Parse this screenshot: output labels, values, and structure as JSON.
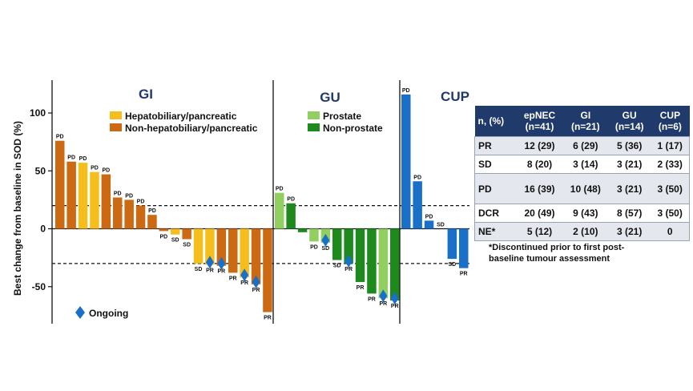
{
  "chart_data": {
    "type": "bar",
    "ylabel": "Best change from baseline in SOD (%)",
    "ylim": [
      -80,
      120
    ],
    "yticks": [
      100,
      50,
      0,
      -50
    ],
    "reference_lines": [
      20,
      -30
    ],
    "groups": [
      {
        "name": "GI",
        "bars": [
          {
            "value": 76,
            "response": "PD",
            "subtype": "Non-hepatobiliary/pancreatic",
            "ongoing": false
          },
          {
            "value": 58,
            "response": "PD",
            "subtype": "Non-hepatobiliary/pancreatic",
            "ongoing": false
          },
          {
            "value": 57,
            "response": "PD",
            "subtype": "Hepatobiliary/pancreatic",
            "ongoing": false
          },
          {
            "value": 49,
            "response": "PD",
            "subtype": "Hepatobiliary/pancreatic",
            "ongoing": false
          },
          {
            "value": 47,
            "response": "PD",
            "subtype": "Non-hepatobiliary/pancreatic",
            "ongoing": false
          },
          {
            "value": 27,
            "response": "PD",
            "subtype": "Non-hepatobiliary/pancreatic",
            "ongoing": false
          },
          {
            "value": 25,
            "response": "PD",
            "subtype": "Non-hepatobiliary/pancreatic",
            "ongoing": false
          },
          {
            "value": 20,
            "response": "PD",
            "subtype": "Non-hepatobiliary/pancreatic",
            "ongoing": false
          },
          {
            "value": 12,
            "response": "PD",
            "subtype": "Non-hepatobiliary/pancreatic",
            "ongoing": false
          },
          {
            "value": -2,
            "response": "PD",
            "subtype": "Non-hepatobiliary/pancreatic",
            "ongoing": false
          },
          {
            "value": -5,
            "response": "SD",
            "subtype": "Hepatobiliary/pancreatic",
            "ongoing": false
          },
          {
            "value": -9,
            "response": "SD",
            "subtype": "Non-hepatobiliary/pancreatic",
            "ongoing": false
          },
          {
            "value": -30,
            "response": "SD",
            "subtype": "Hepatobiliary/pancreatic",
            "ongoing": false
          },
          {
            "value": -31,
            "response": "PR",
            "subtype": "Hepatobiliary/pancreatic",
            "ongoing": true
          },
          {
            "value": -32,
            "response": "PR",
            "subtype": "Non-hepatobiliary/pancreatic",
            "ongoing": true
          },
          {
            "value": -38,
            "response": "PR",
            "subtype": "Non-hepatobiliary/pancreatic",
            "ongoing": false
          },
          {
            "value": -42,
            "response": "PR",
            "subtype": "Hepatobiliary/pancreatic",
            "ongoing": true
          },
          {
            "value": -48,
            "response": "PR",
            "subtype": "Non-hepatobiliary/pancreatic",
            "ongoing": true
          },
          {
            "value": -72,
            "response": "PR",
            "subtype": "Non-hepatobiliary/pancreatic",
            "ongoing": false
          }
        ]
      },
      {
        "name": "GU",
        "bars": [
          {
            "value": 31,
            "response": "PD",
            "subtype": "Prostate",
            "ongoing": false
          },
          {
            "value": 22,
            "response": "PD",
            "subtype": "Non-prostate",
            "ongoing": false
          },
          {
            "value": -3,
            "response": "",
            "subtype": "Non-prostate",
            "ongoing": false
          },
          {
            "value": -11,
            "response": "PD",
            "subtype": "Prostate",
            "ongoing": false
          },
          {
            "value": -12,
            "response": "SD",
            "subtype": "Prostate",
            "ongoing": true
          },
          {
            "value": -27,
            "response": "SD",
            "subtype": "Non-prostate",
            "ongoing": false
          },
          {
            "value": -30,
            "response": "PR",
            "subtype": "Non-prostate",
            "ongoing": true
          },
          {
            "value": -46,
            "response": "PR",
            "subtype": "Non-prostate",
            "ongoing": false
          },
          {
            "value": -56,
            "response": "PR",
            "subtype": "Non-prostate",
            "ongoing": false
          },
          {
            "value": -60,
            "response": "PR",
            "subtype": "Prostate",
            "ongoing": true
          },
          {
            "value": -62,
            "response": "PR",
            "subtype": "Non-prostate",
            "ongoing": true
          }
        ]
      },
      {
        "name": "CUP",
        "bars": [
          {
            "value": 116,
            "response": "PD",
            "subtype": "CUP",
            "ongoing": false
          },
          {
            "value": 41,
            "response": "PD",
            "subtype": "CUP",
            "ongoing": false
          },
          {
            "value": 7,
            "response": "PD",
            "subtype": "CUP",
            "ongoing": false
          },
          {
            "value": 0,
            "response": "SD",
            "subtype": "CUP",
            "ongoing": false
          },
          {
            "value": -26,
            "response": "SD",
            "subtype": "CUP",
            "ongoing": false
          },
          {
            "value": -34,
            "response": "PR",
            "subtype": "CUP",
            "ongoing": false
          }
        ]
      }
    ],
    "legend": [
      {
        "label": "Hepatobiliary/pancreatic",
        "color": "#f5be1c",
        "group": "GI"
      },
      {
        "label": "Non-hepatobiliary/pancreatic",
        "color": "#cc6a14",
        "group": "GI"
      },
      {
        "label": "Prostate",
        "color": "#92cf61",
        "group": "GU"
      },
      {
        "label": "Non-prostate",
        "color": "#1e8a1e",
        "group": "GU"
      },
      {
        "label": "Ongoing",
        "color": "#1a70c8",
        "marker": "diamond"
      }
    ],
    "cup_color": "#1a70c8"
  },
  "table": {
    "headers": [
      {
        "line1": "n, (%)",
        "line2": ""
      },
      {
        "line1": "epNEC",
        "line2": "(n=41)"
      },
      {
        "line1": "GI",
        "line2": "(n=21)"
      },
      {
        "line1": "GU",
        "line2": "(n=14)"
      },
      {
        "line1": "CUP",
        "line2": "(n=6)"
      }
    ],
    "rows": [
      {
        "label": "PR",
        "cells": [
          "12 (29)",
          "6 (29)",
          "5 (36)",
          "1 (17)"
        ]
      },
      {
        "label": "SD",
        "cells": [
          "8 (20)",
          "3 (14)",
          "3 (21)",
          "2 (33)"
        ]
      },
      {
        "label": "PD",
        "cells": [
          "16 (39)",
          "10 (48)",
          "3 (21)",
          "3 (50)"
        ]
      },
      {
        "label": "DCR",
        "cells": [
          "20 (49)",
          "9 (43)",
          "8 (57)",
          "3 (50)"
        ]
      },
      {
        "label": "NE*",
        "cells": [
          "5 (12)",
          "2 (10)",
          "3 (21)",
          "0"
        ]
      }
    ],
    "footnote": "*Discontinued prior to first post-baseline tumour assessment"
  }
}
